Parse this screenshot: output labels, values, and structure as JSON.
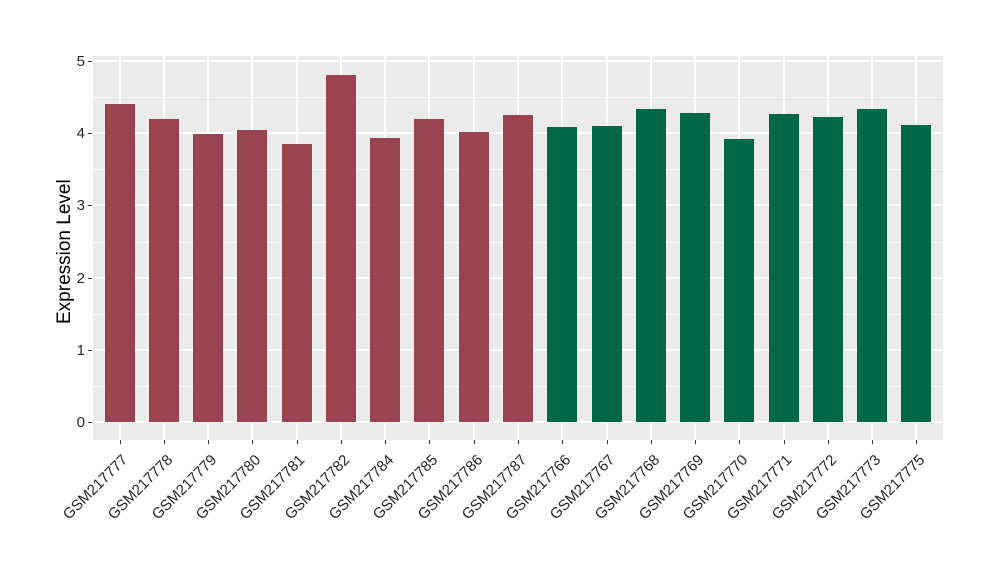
{
  "chart_data": {
    "type": "bar",
    "title": "",
    "ylabel": "Expression Level",
    "xlabel": "",
    "ylim": [
      0,
      5.05
    ],
    "yticks": [
      "0",
      "1",
      "2",
      "3",
      "4",
      "5"
    ],
    "minor_gridlines": [
      0.5,
      1.5,
      2.5,
      3.5,
      4.5
    ],
    "grid": "major and minor white gridlines on grey panel",
    "legend_position": "none",
    "panel_bg": "#EBEBEB",
    "gridline_color": "#FFFFFF",
    "categories": [
      "GSM217777",
      "GSM217778",
      "GSM217779",
      "GSM217780",
      "GSM217781",
      "GSM217782",
      "GSM217784",
      "GSM217785",
      "GSM217786",
      "GSM217787",
      "GSM217766",
      "GSM217767",
      "GSM217768",
      "GSM217769",
      "GSM217770",
      "GSM217771",
      "GSM217772",
      "GSM217773",
      "GSM217775"
    ],
    "values": [
      4.4,
      4.2,
      3.99,
      4.05,
      3.85,
      4.81,
      3.93,
      4.19,
      4.02,
      4.25,
      4.09,
      4.1,
      4.33,
      4.28,
      3.92,
      4.27,
      4.22,
      4.33,
      4.11
    ],
    "bar_group_index": [
      0,
      0,
      0,
      0,
      0,
      0,
      0,
      0,
      0,
      0,
      1,
      1,
      1,
      1,
      1,
      1,
      1,
      1,
      1
    ],
    "group_colors": [
      "#9A4452",
      "#016747"
    ]
  }
}
